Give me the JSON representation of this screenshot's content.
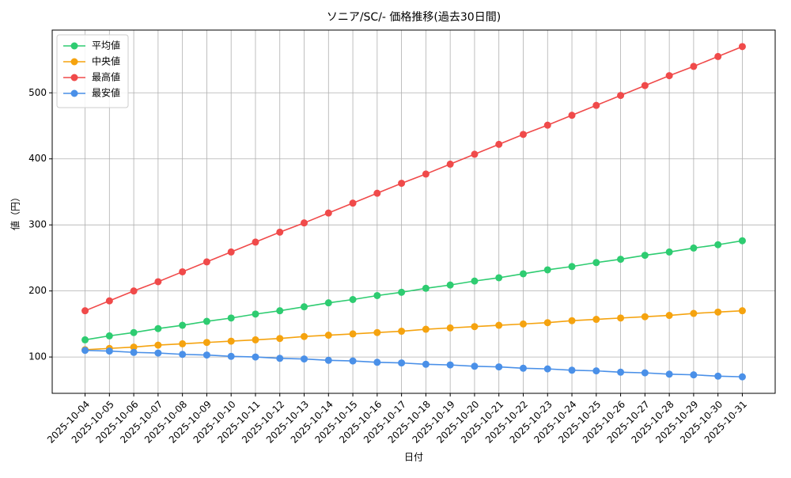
{
  "chart_data": {
    "type": "line",
    "title": "ソニア/SC/- 価格推移(過去30日間)",
    "x_label": "日付",
    "y_label": "値（円）",
    "categories": [
      "2025-10-04",
      "2025-10-05",
      "2025-10-06",
      "2025-10-07",
      "2025-10-08",
      "2025-10-09",
      "2025-10-10",
      "2025-10-11",
      "2025-10-12",
      "2025-10-13",
      "2025-10-14",
      "2025-10-15",
      "2025-10-16",
      "2025-10-17",
      "2025-10-18",
      "2025-10-19",
      "2025-10-20",
      "2025-10-21",
      "2025-10-22",
      "2025-10-23",
      "2025-10-24",
      "2025-10-25",
      "2025-10-26",
      "2025-10-27",
      "2025-10-28",
      "2025-10-29",
      "2025-10-30",
      "2025-10-31"
    ],
    "series": [
      {
        "name": "平均値",
        "color": "#2ecc71",
        "values": [
          126,
          132,
          137,
          143,
          148,
          154,
          159,
          165,
          170,
          176,
          182,
          187,
          193,
          198,
          204,
          209,
          215,
          220,
          226,
          232,
          237,
          243,
          248,
          254,
          259,
          265,
          270,
          276
        ]
      },
      {
        "name": "中央値",
        "color": "#f5a30f",
        "values": [
          111,
          113,
          115,
          118,
          120,
          122,
          124,
          126,
          128,
          131,
          133,
          135,
          137,
          139,
          142,
          144,
          146,
          148,
          150,
          152,
          155,
          157,
          159,
          161,
          163,
          166,
          168,
          170
        ]
      },
      {
        "name": "最高値",
        "color": "#f04a4a",
        "values": [
          170,
          185,
          200,
          214,
          229,
          244,
          259,
          274,
          289,
          303,
          318,
          333,
          348,
          363,
          377,
          392,
          407,
          422,
          437,
          451,
          466,
          481,
          496,
          511,
          526,
          540,
          555,
          570
        ]
      },
      {
        "name": "最安値",
        "color": "#4a90e8",
        "values": [
          110,
          109,
          107,
          106,
          104,
          103,
          101,
          100,
          98,
          97,
          95,
          94,
          92,
          91,
          89,
          88,
          86,
          85,
          83,
          82,
          80,
          79,
          77,
          76,
          74,
          73,
          71,
          70
        ]
      }
    ],
    "ylim": [
      45,
      595
    ],
    "yticks": [
      100,
      200,
      300,
      400,
      500
    ],
    "grid": true,
    "legend": "upper left"
  }
}
